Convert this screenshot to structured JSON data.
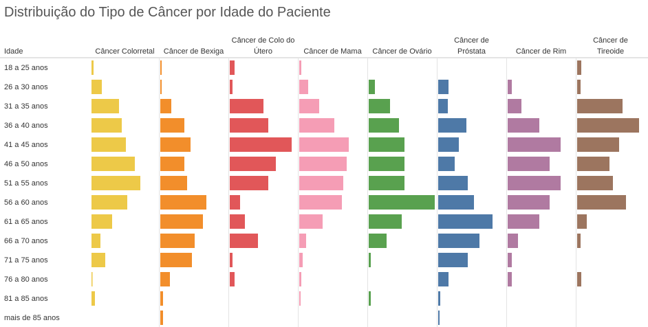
{
  "title": "Distribuição do Tipo de Câncer por Idade do Paciente",
  "row_header": "Idade",
  "chart_data": {
    "type": "bar",
    "title": "Distribuição do Tipo de Câncer por Idade do Paciente",
    "categories": [
      "18 a 25 anos",
      "26 a 30 anos",
      "31 a 35 anos",
      "36 a 40 anos",
      "41 a 45 anos",
      "46 a 50 anos",
      "51 a 55 anos",
      "56 a 60 anos",
      "61 a 65 anos",
      "66 a 70 anos",
      "71 a 75 anos",
      "76 a 80 anos",
      "81 a 85 anos",
      "mais de 85 anos"
    ],
    "series": [
      {
        "name": "Câncer Colorretal",
        "label_lines": [
          "Câncer Colorretal"
        ],
        "color": "#EDC948",
        "values": [
          3,
          15,
          40,
          44,
          50,
          63,
          71,
          52,
          30,
          13,
          20,
          1,
          5,
          0
        ]
      },
      {
        "name": "Câncer de Bexiga",
        "label_lines": [
          "Câncer de Bexiga"
        ],
        "color": "#F28E2B",
        "values": [
          2,
          2,
          16,
          35,
          44,
          35,
          39,
          67,
          62,
          50,
          46,
          14,
          4,
          4
        ]
      },
      {
        "name": "Câncer de Colo do Útero",
        "label_lines": [
          "Câncer de Colo do",
          "Útero"
        ],
        "color": "#E15759",
        "values": [
          7,
          4,
          49,
          56,
          90,
          67,
          56,
          15,
          22,
          41,
          4,
          7,
          0,
          0
        ]
      },
      {
        "name": "Câncer de Mama",
        "label_lines": [
          "Câncer de Mama"
        ],
        "color": "#F59DB5",
        "values": [
          3,
          13,
          29,
          51,
          72,
          69,
          64,
          62,
          34,
          10,
          5,
          3,
          2,
          0
        ]
      },
      {
        "name": "Câncer de Ovário",
        "label_lines": [
          "Câncer de Ovário"
        ],
        "color": "#59A14F",
        "values": [
          0,
          9,
          31,
          44,
          52,
          52,
          52,
          96,
          48,
          26,
          3,
          0,
          3,
          0
        ]
      },
      {
        "name": "Câncer de Próstata",
        "label_lines": [
          "Câncer de",
          "Próstata"
        ],
        "color": "#4E79A7",
        "values": [
          0,
          15,
          14,
          41,
          30,
          24,
          43,
          52,
          79,
          60,
          43,
          15,
          3,
          2
        ]
      },
      {
        "name": "Câncer de Rim",
        "label_lines": [
          "Câncer de Rim"
        ],
        "color": "#B07AA1",
        "values": [
          0,
          6,
          20,
          46,
          77,
          61,
          77,
          61,
          46,
          15,
          6,
          6,
          0,
          0
        ]
      },
      {
        "name": "Câncer de Tireoide",
        "label_lines": [
          "Câncer de",
          "Tireoide"
        ],
        "color": "#9C755F",
        "values": [
          6,
          5,
          66,
          90,
          61,
          47,
          52,
          71,
          14,
          5,
          0,
          6,
          0,
          0
        ]
      }
    ]
  }
}
